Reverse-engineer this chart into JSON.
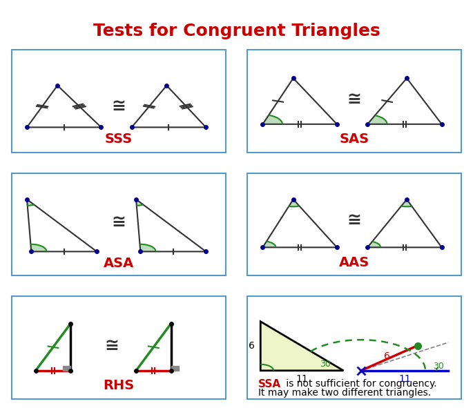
{
  "title": "Tests for Congruent Triangles",
  "title_color": "#cc0000",
  "title_fontsize": 18,
  "background_color": "#ffffff",
  "box_edge_color": "#5599cc",
  "congruent_symbol": "≅",
  "labels": {
    "SSS": "SSS",
    "SAS": "SAS",
    "ASA": "ASA",
    "AAS": "AAS",
    "RHS": "RHS"
  },
  "label_color": "#cc0000",
  "label_fontsize": 14,
  "dot_color": "#00008B",
  "line_color": "#333333",
  "green_color": "#228B22",
  "red_color": "#cc0000",
  "blue_color": "#0000cc"
}
